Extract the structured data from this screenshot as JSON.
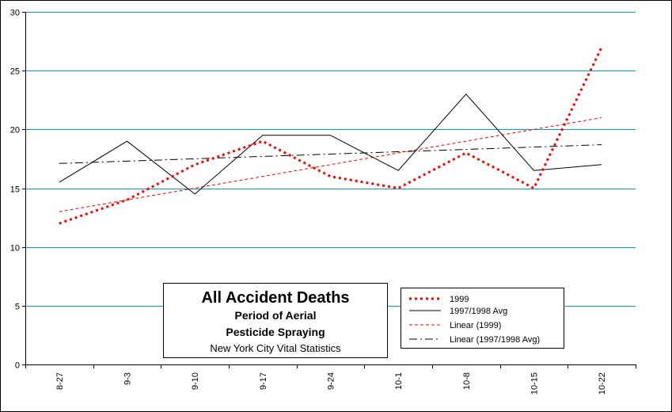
{
  "chart_data": {
    "type": "line",
    "title_lines": [
      "All Accident Deaths",
      "Period of Aerial",
      "Pesticide Spraying",
      "New York City Vital Statistics"
    ],
    "categories": [
      "8-27",
      "9-3",
      "9-10",
      "9-17",
      "9-24",
      "10-1",
      "10-8",
      "10-15",
      "10-22"
    ],
    "ylim": [
      0,
      30
    ],
    "yticks": [
      0,
      5,
      10,
      15,
      20,
      25,
      30
    ],
    "grid": "horizontal",
    "legend_placement": "bottom-right",
    "series": [
      {
        "name": "1999",
        "values": [
          12,
          14,
          17,
          19,
          16,
          15,
          18,
          15,
          27
        ],
        "color": "#ff0000",
        "style": "dotted-thick"
      },
      {
        "name": "1997/1998 Avg",
        "values": [
          15.5,
          19,
          14.5,
          19.5,
          19.5,
          16.5,
          23,
          16.5,
          17
        ],
        "color": "#000000",
        "style": "solid"
      },
      {
        "name": "Linear (1999)",
        "values": [
          13,
          14,
          15,
          16,
          17,
          18,
          19,
          20,
          21
        ],
        "color": "#ff0000",
        "style": "dashed-thin"
      },
      {
        "name": "Linear (1997/1998 Avg)",
        "values": [
          17.1,
          17.3,
          17.5,
          17.7,
          17.9,
          18.1,
          18.3,
          18.5,
          18.7
        ],
        "color": "#000000",
        "style": "dash-dot"
      }
    ],
    "colors": {
      "grid": "#00a0c0",
      "frame": "#000000"
    }
  }
}
